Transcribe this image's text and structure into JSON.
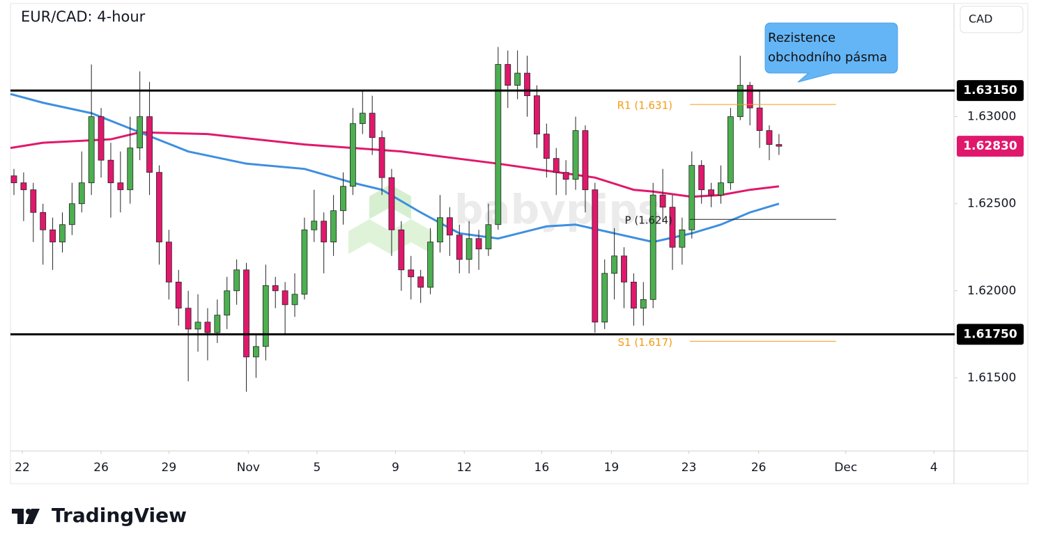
{
  "chart_data": {
    "type": "candlestick",
    "title": "EUR/CAD: 4-hour",
    "currency": "CAD",
    "logo": "TradingView",
    "watermark": "babypips",
    "annotation": "Rezistence obchodního pásma",
    "up_color": "#4caf50",
    "down_color": "#e0186c",
    "ylim": [
      1.6108,
      1.6365
    ],
    "xlim": [
      -0.36,
      97
    ],
    "yticks": [
      {
        "value": 1.63,
        "label": "1.63000"
      },
      {
        "value": 1.625,
        "label": "1.62500"
      },
      {
        "value": 1.62,
        "label": "1.62000"
      },
      {
        "value": 1.615,
        "label": "1.61500"
      }
    ],
    "xticks": [
      {
        "value": 0.86,
        "label": "22"
      },
      {
        "value": 9.0,
        "label": "26"
      },
      {
        "value": 16.0,
        "label": "29"
      },
      {
        "value": 24.2,
        "label": "Nov"
      },
      {
        "value": 31.3,
        "label": "5"
      },
      {
        "value": 39.4,
        "label": "9"
      },
      {
        "value": 46.5,
        "label": "12"
      },
      {
        "value": 54.5,
        "label": "16"
      },
      {
        "value": 61.7,
        "label": "19"
      },
      {
        "value": 69.7,
        "label": "23"
      },
      {
        "value": 76.9,
        "label": "26"
      },
      {
        "value": 85.9,
        "label": "Dec"
      },
      {
        "value": 95.0,
        "label": "4"
      }
    ],
    "open": [
      1.6266,
      1.6262,
      1.6258,
      1.6245,
      1.6235,
      1.6228,
      1.6238,
      1.625,
      1.6262,
      1.63,
      1.6275,
      1.6262,
      1.6258,
      1.6282,
      1.63,
      1.6268,
      1.6228,
      1.6205,
      1.619,
      1.6178,
      1.6182,
      1.6176,
      1.6186,
      1.62,
      1.6212,
      1.6162,
      1.6168,
      1.6203,
      1.62,
      1.6192,
      1.6198,
      1.6235,
      1.624,
      1.6228,
      1.6246,
      1.626,
      1.6296,
      1.6302,
      1.6288,
      1.6265,
      1.6235,
      1.6212,
      1.6208,
      1.6202,
      1.6228,
      1.6242,
      1.6232,
      1.6218,
      1.623,
      1.6224,
      1.6238,
      1.633,
      1.6318,
      1.6325,
      1.6312,
      1.629,
      1.6276,
      1.6268,
      1.6264,
      1.6292,
      1.6258,
      1.6182,
      1.621,
      1.622,
      1.6205,
      1.619,
      1.6195,
      1.6255,
      1.6248,
      1.6225,
      1.6235,
      1.6272,
      1.6258,
      1.6255,
      1.6262,
      1.63,
      1.6318,
      1.6305,
      1.6292,
      1.6284
    ],
    "high": [
      1.627,
      1.6268,
      1.6262,
      1.625,
      1.6242,
      1.6245,
      1.6262,
      1.628,
      1.633,
      1.6305,
      1.6285,
      1.628,
      1.63,
      1.6326,
      1.632,
      1.6272,
      1.6235,
      1.6212,
      1.62,
      1.6198,
      1.619,
      1.6195,
      1.6208,
      1.6218,
      1.6216,
      1.6175,
      1.6215,
      1.6208,
      1.6205,
      1.621,
      1.6242,
      1.6258,
      1.6245,
      1.6255,
      1.6268,
      1.6305,
      1.6315,
      1.6312,
      1.6292,
      1.627,
      1.624,
      1.622,
      1.6212,
      1.6236,
      1.6255,
      1.6248,
      1.6238,
      1.624,
      1.6235,
      1.625,
      1.634,
      1.6338,
      1.6338,
      1.6335,
      1.6318,
      1.6296,
      1.6282,
      1.6275,
      1.63,
      1.6295,
      1.6262,
      1.6218,
      1.6236,
      1.6225,
      1.621,
      1.6205,
      1.6262,
      1.627,
      1.6255,
      1.6242,
      1.628,
      1.6275,
      1.6262,
      1.6272,
      1.6305,
      1.6335,
      1.632,
      1.6315,
      1.6295,
      1.629
    ],
    "low": [
      1.6255,
      1.624,
      1.6228,
      1.6215,
      1.6212,
      1.6222,
      1.6232,
      1.6245,
      1.6255,
      1.6265,
      1.6242,
      1.6245,
      1.625,
      1.6275,
      1.6255,
      1.6215,
      1.6195,
      1.618,
      1.6148,
      1.6165,
      1.616,
      1.617,
      1.6178,
      1.6192,
      1.6142,
      1.615,
      1.616,
      1.619,
      1.6175,
      1.6185,
      1.6195,
      1.6228,
      1.621,
      1.622,
      1.6238,
      1.6255,
      1.629,
      1.6278,
      1.6255,
      1.622,
      1.62,
      1.6195,
      1.6193,
      1.6198,
      1.6222,
      1.622,
      1.621,
      1.621,
      1.6212,
      1.622,
      1.6235,
      1.6305,
      1.631,
      1.63,
      1.6282,
      1.6265,
      1.6255,
      1.6255,
      1.6258,
      1.6245,
      1.6176,
      1.6178,
      1.6195,
      1.619,
      1.618,
      1.618,
      1.619,
      1.624,
      1.6212,
      1.6215,
      1.623,
      1.625,
      1.6248,
      1.625,
      1.6258,
      1.6298,
      1.6295,
      1.6282,
      1.6275,
      1.6278
    ],
    "close": [
      1.6262,
      1.6258,
      1.6245,
      1.6235,
      1.6228,
      1.6238,
      1.625,
      1.6262,
      1.63,
      1.6275,
      1.6262,
      1.6258,
      1.6282,
      1.63,
      1.6268,
      1.6228,
      1.6205,
      1.619,
      1.6178,
      1.6182,
      1.6176,
      1.6186,
      1.62,
      1.6212,
      1.6162,
      1.6168,
      1.6203,
      1.62,
      1.6192,
      1.6198,
      1.6235,
      1.624,
      1.6228,
      1.6246,
      1.626,
      1.6296,
      1.6302,
      1.6288,
      1.6265,
      1.6235,
      1.6212,
      1.6208,
      1.6202,
      1.6228,
      1.6242,
      1.6232,
      1.6218,
      1.623,
      1.6224,
      1.6238,
      1.633,
      1.6318,
      1.6325,
      1.6312,
      1.629,
      1.6276,
      1.6268,
      1.6264,
      1.6292,
      1.6258,
      1.6182,
      1.621,
      1.622,
      1.6205,
      1.619,
      1.6195,
      1.6255,
      1.6248,
      1.6225,
      1.6235,
      1.6272,
      1.6258,
      1.6255,
      1.6262,
      1.63,
      1.6318,
      1.6305,
      1.6292,
      1.6284,
      1.6283
    ],
    "lines": [
      {
        "color": "#e0186c",
        "x": [
          -0.36,
          3,
          10,
          13,
          20,
          30,
          35,
          40,
          50,
          60,
          64,
          66,
          70,
          73,
          76,
          79
        ],
        "values": [
          1.6282,
          1.6285,
          1.6287,
          1.6291,
          1.629,
          1.6284,
          1.6282,
          1.628,
          1.6273,
          1.6265,
          1.6258,
          1.6257,
          1.6254,
          1.6255,
          1.6258,
          1.626
        ]
      },
      {
        "color": "#3d8fe0",
        "x": [
          -0.36,
          3,
          8,
          13,
          18,
          24,
          30,
          35,
          38,
          42,
          46,
          50,
          55,
          58,
          62,
          66,
          70,
          73,
          76,
          79
        ],
        "values": [
          1.6313,
          1.6308,
          1.6302,
          1.6291,
          1.628,
          1.6273,
          1.627,
          1.6262,
          1.6258,
          1.6245,
          1.6233,
          1.623,
          1.6237,
          1.6238,
          1.6233,
          1.6228,
          1.6233,
          1.6238,
          1.6245,
          1.625
        ]
      }
    ],
    "levels": [
      {
        "value": 1.6315,
        "label": "1.63150"
      },
      {
        "value": 1.6175,
        "label": "1.61750"
      }
    ],
    "last_price": {
      "value": 1.6283,
      "label": "1.62830"
    },
    "pivot_xlim": [
      69.8,
      84.9
    ],
    "pivots": [
      {
        "label": "R1 (1.631)",
        "value": 1.6307,
        "color": "#f39c12"
      },
      {
        "label": "P (1.624)",
        "value": 1.6241,
        "color": "#222222"
      },
      {
        "label": "S1 (1.617)",
        "value": 1.6171,
        "color": "#f39c12"
      }
    ]
  }
}
